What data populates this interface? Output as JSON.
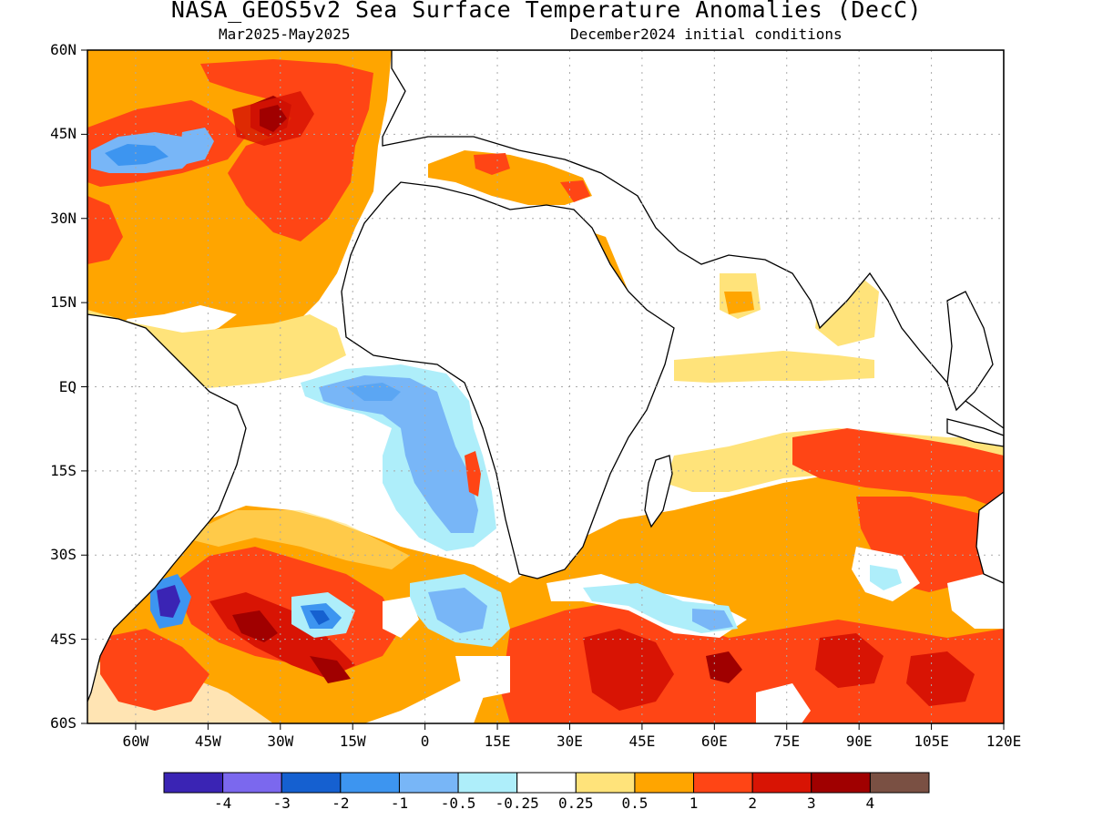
{
  "header": {
    "title": "NASA_GEOS5v2 Sea Surface Temperature Anomalies (DecC)",
    "period": "Mar2025-May2025",
    "init": "December2024 initial conditions"
  },
  "map": {
    "lon_range": [
      -70,
      120
    ],
    "lat_range": [
      -60,
      60
    ],
    "lat_labels": [
      "60N",
      "45N",
      "30N",
      "15N",
      "EQ",
      "15S",
      "30S",
      "45S",
      "60S"
    ],
    "lat_values": [
      60,
      45,
      30,
      15,
      0,
      -15,
      -30,
      -45,
      -60
    ],
    "lon_labels": [
      "60W",
      "45W",
      "30W",
      "15W",
      "0",
      "15E",
      "30E",
      "45E",
      "60E",
      "75E",
      "90E",
      "105E",
      "120E"
    ],
    "lon_values": [
      -60,
      -45,
      -30,
      -15,
      0,
      15,
      30,
      45,
      60,
      75,
      90,
      105,
      120
    ],
    "grid": true
  },
  "colorbar": {
    "colors": [
      "#3a24b4",
      "#7b68ee",
      "#1560d0",
      "#3d95f0",
      "#78b6f7",
      "#aeeefa",
      "#ffffff",
      "#ffe37a",
      "#ffa500",
      "#ff4515",
      "#d81404",
      "#a00000",
      "#7a5043"
    ],
    "labels": [
      "-4",
      "-3",
      "-2",
      "-1",
      "-0.5",
      "-0.25",
      "0.25",
      "0.5",
      "1",
      "2",
      "3",
      "4"
    ]
  },
  "colors": {
    "land": "#ffffff",
    "coast": "#000000",
    "grid": "#aaaaaa"
  }
}
